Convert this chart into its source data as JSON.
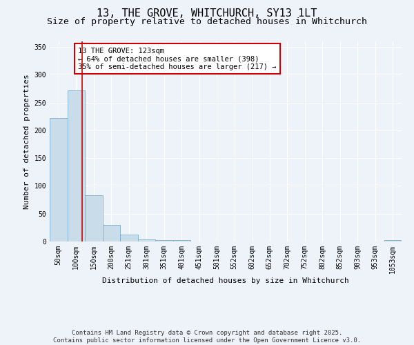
{
  "title": "13, THE GROVE, WHITCHURCH, SY13 1LT",
  "subtitle": "Size of property relative to detached houses in Whitchurch",
  "xlabel": "Distribution of detached houses by size in Whitchurch",
  "ylabel": "Number of detached properties",
  "categories": [
    "50sqm",
    "100sqm",
    "150sqm",
    "200sqm",
    "251sqm",
    "301sqm",
    "351sqm",
    "401sqm",
    "451sqm",
    "501sqm",
    "552sqm",
    "602sqm",
    "652sqm",
    "702sqm",
    "752sqm",
    "802sqm",
    "852sqm",
    "903sqm",
    "953sqm",
    "1053sqm"
  ],
  "values": [
    222,
    272,
    83,
    30,
    12,
    4,
    3,
    3,
    0,
    0,
    0,
    0,
    0,
    0,
    0,
    0,
    0,
    0,
    0,
    3
  ],
  "bar_color": "#c9dcea",
  "bar_edge_color": "#7bafd4",
  "red_line_x": 1.35,
  "annotation_line1": "13 THE GROVE: 123sqm",
  "annotation_line2": "← 64% of detached houses are smaller (398)",
  "annotation_line3": "35% of semi-detached houses are larger (217) →",
  "annotation_box_color": "#ffffff",
  "annotation_box_edge_color": "#cc0000",
  "annotation_text_color": "#000000",
  "red_line_color": "#cc0000",
  "ylim": [
    0,
    360
  ],
  "yticks": [
    0,
    50,
    100,
    150,
    200,
    250,
    300,
    350
  ],
  "footer_line1": "Contains HM Land Registry data © Crown copyright and database right 2025.",
  "footer_line2": "Contains public sector information licensed under the Open Government Licence v3.0.",
  "background_color": "#eef2f9",
  "grid_color": "#ffffff",
  "title_fontsize": 11,
  "subtitle_fontsize": 9.5,
  "axis_label_fontsize": 8,
  "tick_fontsize": 7,
  "annotation_fontsize": 7.5,
  "footer_fontsize": 6.5
}
